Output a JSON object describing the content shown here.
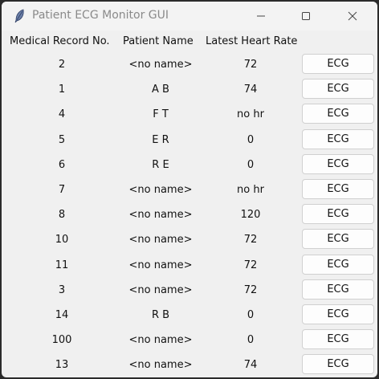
{
  "window": {
    "title": "Patient ECG Monitor GUI",
    "icon": "feather-icon"
  },
  "titlebar_controls": [
    "minimize-icon",
    "maximize-icon",
    "close-icon"
  ],
  "table": {
    "headers": {
      "record": "Medical Record No.",
      "name": "Patient Name",
      "heart_rate": "Latest Heart Rate"
    },
    "rows": [
      {
        "record": "2",
        "name": "<no name>",
        "heart_rate": "72",
        "button": "ECG"
      },
      {
        "record": "1",
        "name": "A B",
        "heart_rate": "74",
        "button": "ECG"
      },
      {
        "record": "4",
        "name": "F T",
        "heart_rate": "no hr",
        "button": "ECG"
      },
      {
        "record": "5",
        "name": "E R",
        "heart_rate": "0",
        "button": "ECG"
      },
      {
        "record": "6",
        "name": "R E",
        "heart_rate": "0",
        "button": "ECG"
      },
      {
        "record": "7",
        "name": "<no name>",
        "heart_rate": "no hr",
        "button": "ECG"
      },
      {
        "record": "8",
        "name": "<no name>",
        "heart_rate": "120",
        "button": "ECG"
      },
      {
        "record": "10",
        "name": "<no name>",
        "heart_rate": "72",
        "button": "ECG"
      },
      {
        "record": "11",
        "name": "<no name>",
        "heart_rate": "72",
        "button": "ECG"
      },
      {
        "record": "3",
        "name": "<no name>",
        "heart_rate": "72",
        "button": "ECG"
      },
      {
        "record": "14",
        "name": "R B",
        "heart_rate": "0",
        "button": "ECG"
      },
      {
        "record": "100",
        "name": "<no name>",
        "heart_rate": "0",
        "button": "ECG"
      },
      {
        "record": "13",
        "name": "<no name>",
        "heart_rate": "74",
        "button": "ECG"
      }
    ]
  }
}
